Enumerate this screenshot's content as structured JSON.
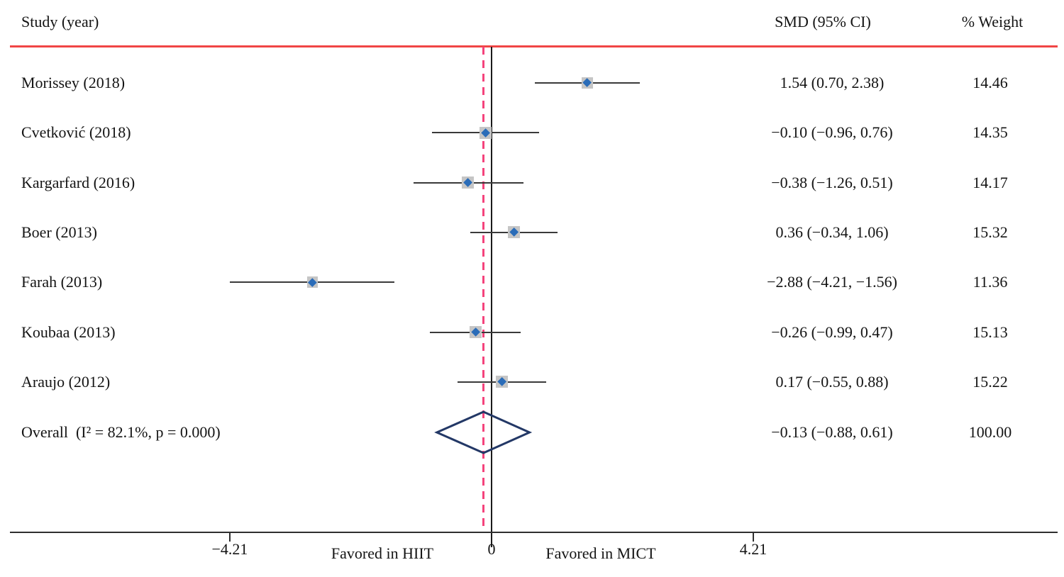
{
  "header": {
    "study": "Study (year)",
    "smd": "SMD (95% CI)",
    "weight": "% Weight"
  },
  "axis": {
    "ticks": [
      {
        "value": -4.21,
        "label": "−4.21"
      },
      {
        "value": 0,
        "label": "0"
      },
      {
        "value": 4.21,
        "label": "4.21"
      }
    ],
    "left_note": "Favored in HIIT",
    "right_note": "Favored in MICT"
  },
  "chart_data": {
    "type": "forest",
    "effect_measure": "SMD",
    "xlim": [
      -4.21,
      4.21
    ],
    "null_value": 0,
    "studies": [
      {
        "label": "Morissey (2018)",
        "smd": 1.54,
        "ci_low": 0.7,
        "ci_high": 2.38,
        "smd_text": "1.54 (0.70, 2.38)",
        "weight": 14.46,
        "weight_text": "14.46"
      },
      {
        "label": "Cvetković (2018)",
        "smd": -0.1,
        "ci_low": -0.96,
        "ci_high": 0.76,
        "smd_text": "−0.10 (−0.96, 0.76)",
        "weight": 14.35,
        "weight_text": "14.35"
      },
      {
        "label": "Kargarfard (2016)",
        "smd": -0.38,
        "ci_low": -1.26,
        "ci_high": 0.51,
        "smd_text": "−0.38 (−1.26, 0.51)",
        "weight": 14.17,
        "weight_text": "14.17"
      },
      {
        "label": "Boer (2013)",
        "smd": 0.36,
        "ci_low": -0.34,
        "ci_high": 1.06,
        "smd_text": "0.36 (−0.34, 1.06)",
        "weight": 15.32,
        "weight_text": "15.32"
      },
      {
        "label": "Farah (2013)",
        "smd": -2.88,
        "ci_low": -4.21,
        "ci_high": -1.56,
        "smd_text": "−2.88 (−4.21, −1.56)",
        "weight": 11.36,
        "weight_text": "11.36"
      },
      {
        "label": "Koubaa (2013)",
        "smd": -0.26,
        "ci_low": -0.99,
        "ci_high": 0.47,
        "smd_text": "−0.26 (−0.99, 0.47)",
        "weight": 15.13,
        "weight_text": "15.13"
      },
      {
        "label": "Araujo (2012)",
        "smd": 0.17,
        "ci_low": -0.55,
        "ci_high": 0.88,
        "smd_text": "0.17 (−0.55, 0.88)",
        "weight": 15.22,
        "weight_text": "15.22"
      }
    ],
    "overall": {
      "label": "Overall  (I² = 82.1%, p = 0.000)",
      "i_squared": "82.1%",
      "p_value": "0.000",
      "smd": -0.13,
      "ci_low": -0.88,
      "ci_high": 0.61,
      "smd_text": "−0.13 (−0.88, 0.61)",
      "weight": 100.0,
      "weight_text": "100.00"
    }
  },
  "colors": {
    "header_rule": "#f04545",
    "overall_dashed": "#f4437c",
    "null_line": "#1a1a1a",
    "ci_line": "#3a3a3a",
    "weight_box": "#c5c5c5",
    "marker": "#2a6cb8",
    "diamond_outline": "#233866",
    "text": "#141414"
  }
}
